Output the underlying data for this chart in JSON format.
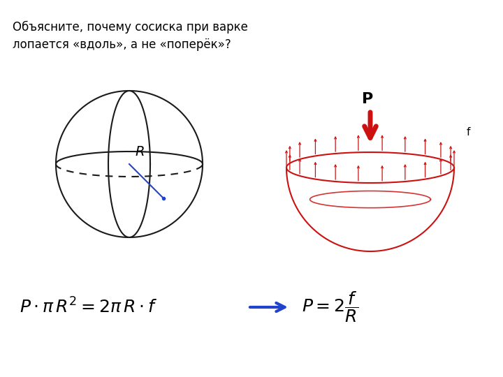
{
  "title_text": "Объясните, почему сосиска при варке\nлопается «вдоль», а не «поперёк»?",
  "title_fontsize": 12,
  "bg_color": "#ffffff",
  "sphere_color": "#1a1a1a",
  "R_label": "R",
  "R_color": "#2244cc",
  "bowl_color": "#cc1111",
  "P_label": "P",
  "f_label": "f",
  "formula1": "$P \\cdot \\pi\\, R^2 = 2\\pi\\, R \\cdot f$",
  "formula2": "$P = 2\\dfrac{f}{R}$",
  "arrow_color": "#2244cc"
}
